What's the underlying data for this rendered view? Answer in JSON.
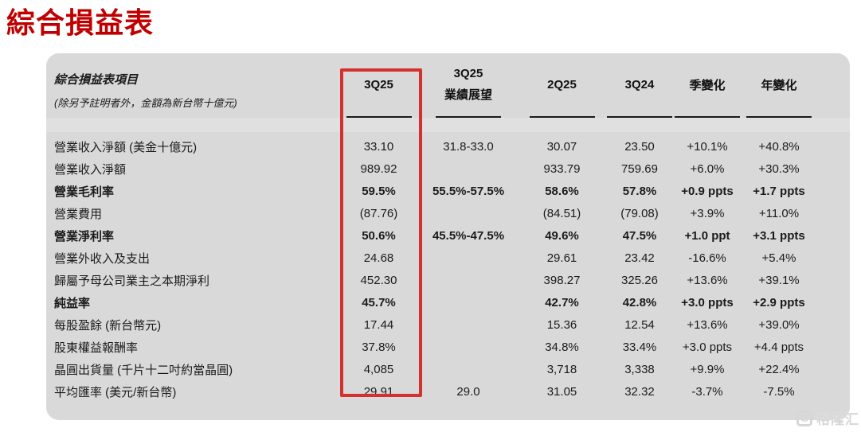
{
  "title": "綜合損益表",
  "colors": {
    "accent_red": "#c00000",
    "highlight_box_red": "#d3302f",
    "panel_gray": "#d9d9d9"
  },
  "watermark": {
    "icon": "G",
    "text": "格隆汇"
  },
  "table": {
    "item_header": {
      "title": "綜合損益表項目",
      "subtitle": "(除另予註明者外，金額為新台幣十億元)"
    },
    "columns": [
      {
        "id": "3q25",
        "label": "3Q25",
        "label2": "",
        "highlighted": true
      },
      {
        "id": "3q25-guidance",
        "label": "3Q25",
        "label2": "業績展望",
        "highlighted": false
      },
      {
        "id": "2q25",
        "label": "2Q25",
        "label2": "",
        "highlighted": false
      },
      {
        "id": "3q24",
        "label": "3Q24",
        "label2": "",
        "highlighted": false
      },
      {
        "id": "qoq-change",
        "label": "季變化",
        "label2": "",
        "highlighted": false
      },
      {
        "id": "yoy-change",
        "label": "年變化",
        "label2": "",
        "highlighted": false
      }
    ],
    "rows": [
      {
        "label": "營業收入淨額 (美金十億元)",
        "bold": false,
        "values": [
          "33.10",
          "31.8-33.0",
          "30.07",
          "23.50",
          "+10.1%",
          "+40.8%"
        ]
      },
      {
        "label": "營業收入淨額",
        "bold": false,
        "values": [
          "989.92",
          "",
          "933.79",
          "759.69",
          "+6.0%",
          "+30.3%"
        ]
      },
      {
        "label": "營業毛利率",
        "bold": true,
        "values": [
          "59.5%",
          "55.5%-57.5%",
          "58.6%",
          "57.8%",
          "+0.9 ppts",
          "+1.7 ppts"
        ]
      },
      {
        "label": "營業費用",
        "bold": false,
        "values": [
          "(87.76)",
          "",
          "(84.51)",
          "(79.08)",
          "+3.9%",
          "+11.0%"
        ]
      },
      {
        "label": "營業淨利率",
        "bold": true,
        "values": [
          "50.6%",
          "45.5%-47.5%",
          "49.6%",
          "47.5%",
          "+1.0 ppt",
          "+3.1 ppts"
        ]
      },
      {
        "label": "營業外收入及支出",
        "bold": false,
        "values": [
          "24.68",
          "",
          "29.61",
          "23.42",
          "-16.6%",
          "+5.4%"
        ]
      },
      {
        "label": "歸屬予母公司業主之本期淨利",
        "bold": false,
        "values": [
          "452.30",
          "",
          "398.27",
          "325.26",
          "+13.6%",
          "+39.1%"
        ]
      },
      {
        "label": "純益率",
        "bold": true,
        "values": [
          "45.7%",
          "",
          "42.7%",
          "42.8%",
          "+3.0 ppts",
          "+2.9 ppts"
        ]
      },
      {
        "label": "每股盈餘 (新台幣元)",
        "bold": false,
        "values": [
          "17.44",
          "",
          "15.36",
          "12.54",
          "+13.6%",
          "+39.0%"
        ]
      },
      {
        "label": "股東權益報酬率",
        "bold": false,
        "values": [
          "37.8%",
          "",
          "34.8%",
          "33.4%",
          "+3.0 ppts",
          "+4.4 ppts"
        ]
      },
      {
        "label": "晶圓出貨量 (千片十二吋約當晶圓)",
        "bold": false,
        "values": [
          "4,085",
          "",
          "3,718",
          "3,338",
          "+9.9%",
          "+22.4%"
        ]
      },
      {
        "label": "平均匯率 (美元/新台幣)",
        "bold": false,
        "values": [
          "29.91",
          "29.0",
          "31.05",
          "32.32",
          "-3.7%",
          "-7.5%"
        ]
      }
    ]
  }
}
